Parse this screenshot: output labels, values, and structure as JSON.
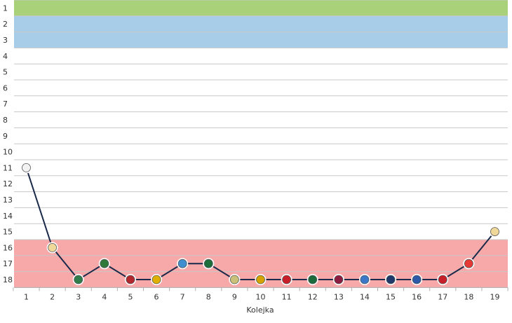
{
  "chart_data": {
    "type": "line",
    "title": "",
    "xlabel": "Kolejka",
    "ylabel": "",
    "x": [
      1,
      2,
      3,
      4,
      5,
      6,
      7,
      8,
      9,
      10,
      11,
      12,
      13,
      14,
      15,
      16,
      17,
      18,
      19
    ],
    "xlim": [
      1,
      19
    ],
    "ylim": [
      1,
      18
    ],
    "y_inverted": true,
    "y_ticks": [
      1,
      2,
      3,
      4,
      5,
      6,
      7,
      8,
      9,
      10,
      11,
      12,
      13,
      14,
      15,
      16,
      17,
      18
    ],
    "grid": true,
    "series": [
      {
        "values": [
          11,
          16,
          18,
          17,
          18,
          18,
          17,
          17,
          18,
          18,
          18,
          18,
          18,
          18,
          18,
          18,
          18,
          17,
          15
        ],
        "color": "#1b2a4a"
      }
    ],
    "bands": [
      {
        "from": 1,
        "to": 1,
        "color": "#a9d17a"
      },
      {
        "from": 2,
        "to": 3,
        "color": "#a8cde9"
      },
      {
        "from": 16,
        "to": 18,
        "color": "#f7a8a8"
      }
    ],
    "marker_colors": [
      "#f3f3f3",
      "#f0d79a",
      "#2e7d4a",
      "#2f7a3a",
      "#b0282d",
      "#e0b000",
      "#3f8fd0",
      "#1d6e3a",
      "#c9c07a",
      "#d4a300",
      "#c8202a",
      "#1a6b3c",
      "#8c1d40",
      "#3c78c8",
      "#1f3a6a",
      "#2a5aa8",
      "#c8202a",
      "#e53935",
      "#f0d79a"
    ]
  }
}
